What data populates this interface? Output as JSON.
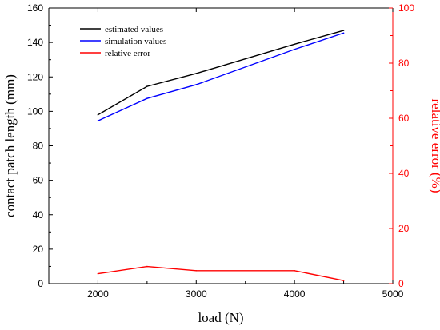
{
  "chart_data": {
    "type": "line",
    "title": "",
    "xlabel": "load (N)",
    "ylabel_left": "contact patch length (mm)",
    "ylabel_right": "relative error (%)",
    "xlim": [
      1500,
      5000
    ],
    "ylim_left": [
      0,
      160
    ],
    "ylim_right": [
      0,
      100
    ],
    "x_ticks": [
      2000,
      3000,
      4000,
      5000
    ],
    "y_left_ticks": [
      0,
      20,
      40,
      60,
      80,
      100,
      120,
      140,
      160
    ],
    "y_right_ticks": [
      0,
      20,
      40,
      60,
      80,
      100
    ],
    "grid": false,
    "legend_position": "top-left",
    "x": [
      2000,
      2500,
      3000,
      4000,
      4500
    ],
    "series": [
      {
        "name": "estimated values",
        "axis": "left",
        "color": "#000000",
        "values": [
          98,
          114.5,
          122,
          139,
          147
        ]
      },
      {
        "name": "simulation values",
        "axis": "left",
        "color": "#0000ff",
        "values": [
          94.5,
          107.5,
          115.5,
          136,
          145.5
        ]
      },
      {
        "name": "relative error",
        "axis": "right",
        "color": "#ff0000",
        "values": [
          3.6,
          6.2,
          4.7,
          4.7,
          1.1
        ]
      }
    ],
    "colors": {
      "axis_left": "#000000",
      "axis_right": "#ff0000"
    }
  }
}
